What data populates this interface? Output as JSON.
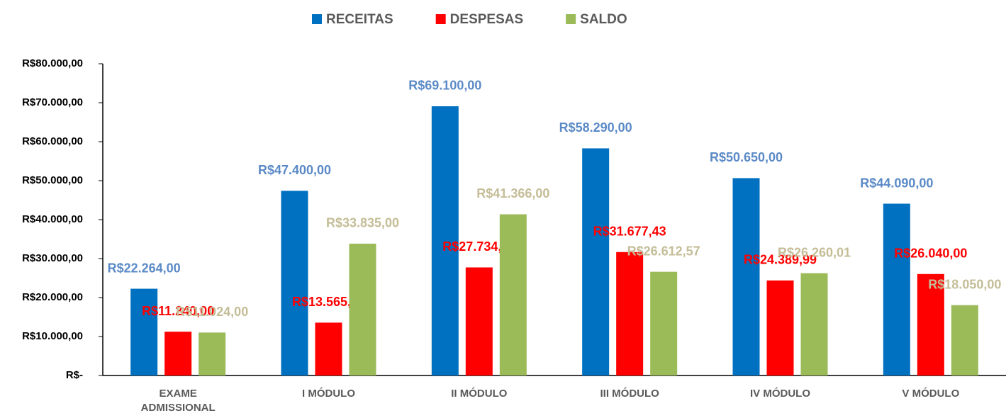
{
  "chart_data": {
    "type": "bar",
    "categories": [
      "EXAME ADMISSIONAL",
      "I MÓDULO",
      "II MÓDULO",
      "III MÓDULO",
      "IV MÓDULO",
      "V MÓDULO"
    ],
    "series": [
      {
        "name": "RECEITAS",
        "color": "#0070c0",
        "label_color": "#5b8ac6",
        "values": [
          22264,
          47400,
          69100,
          58290,
          50650,
          44090
        ],
        "value_labels": [
          "R$22.264,00",
          "R$47.400,00",
          "R$69.100,00",
          "R$58.290,00",
          "R$50.650,00",
          "R$44.090,00"
        ]
      },
      {
        "name": "DESPESAS",
        "color": "#ff0000",
        "label_color": "#ff0000",
        "values": [
          11240,
          13565,
          27734,
          31677.43,
          24389.99,
          26040
        ],
        "value_labels": [
          "R$11.240,00",
          "R$13.565,00",
          "R$27.734,00",
          "R$31.677,43",
          "R$24.389,99",
          "R$26.040,00"
        ]
      },
      {
        "name": "SALDO",
        "color": "#9bbb59",
        "label_color": "#c4bd97",
        "values": [
          11024,
          33835,
          41366,
          26612.57,
          26260.01,
          18050
        ],
        "value_labels": [
          "R$11.024,00",
          "R$33.835,00",
          "R$41.366,00",
          "R$26.612,57",
          "R$26.260,01",
          "R$18.050,00"
        ]
      }
    ],
    "ylim": [
      0,
      80000
    ],
    "yticks": [
      {
        "value": 0,
        "label": "R$-"
      },
      {
        "value": 10000,
        "label": "R$10.000,00"
      },
      {
        "value": 20000,
        "label": "R$20.000,00"
      },
      {
        "value": 30000,
        "label": "R$30.000,00"
      },
      {
        "value": 40000,
        "label": "R$40.000,00"
      },
      {
        "value": 50000,
        "label": "R$50.000,00"
      },
      {
        "value": 60000,
        "label": "R$60.000,00"
      },
      {
        "value": 70000,
        "label": "R$70.000,00"
      },
      {
        "value": 80000,
        "label": "R$80.000,00"
      }
    ],
    "grid": false,
    "legend": "top"
  }
}
